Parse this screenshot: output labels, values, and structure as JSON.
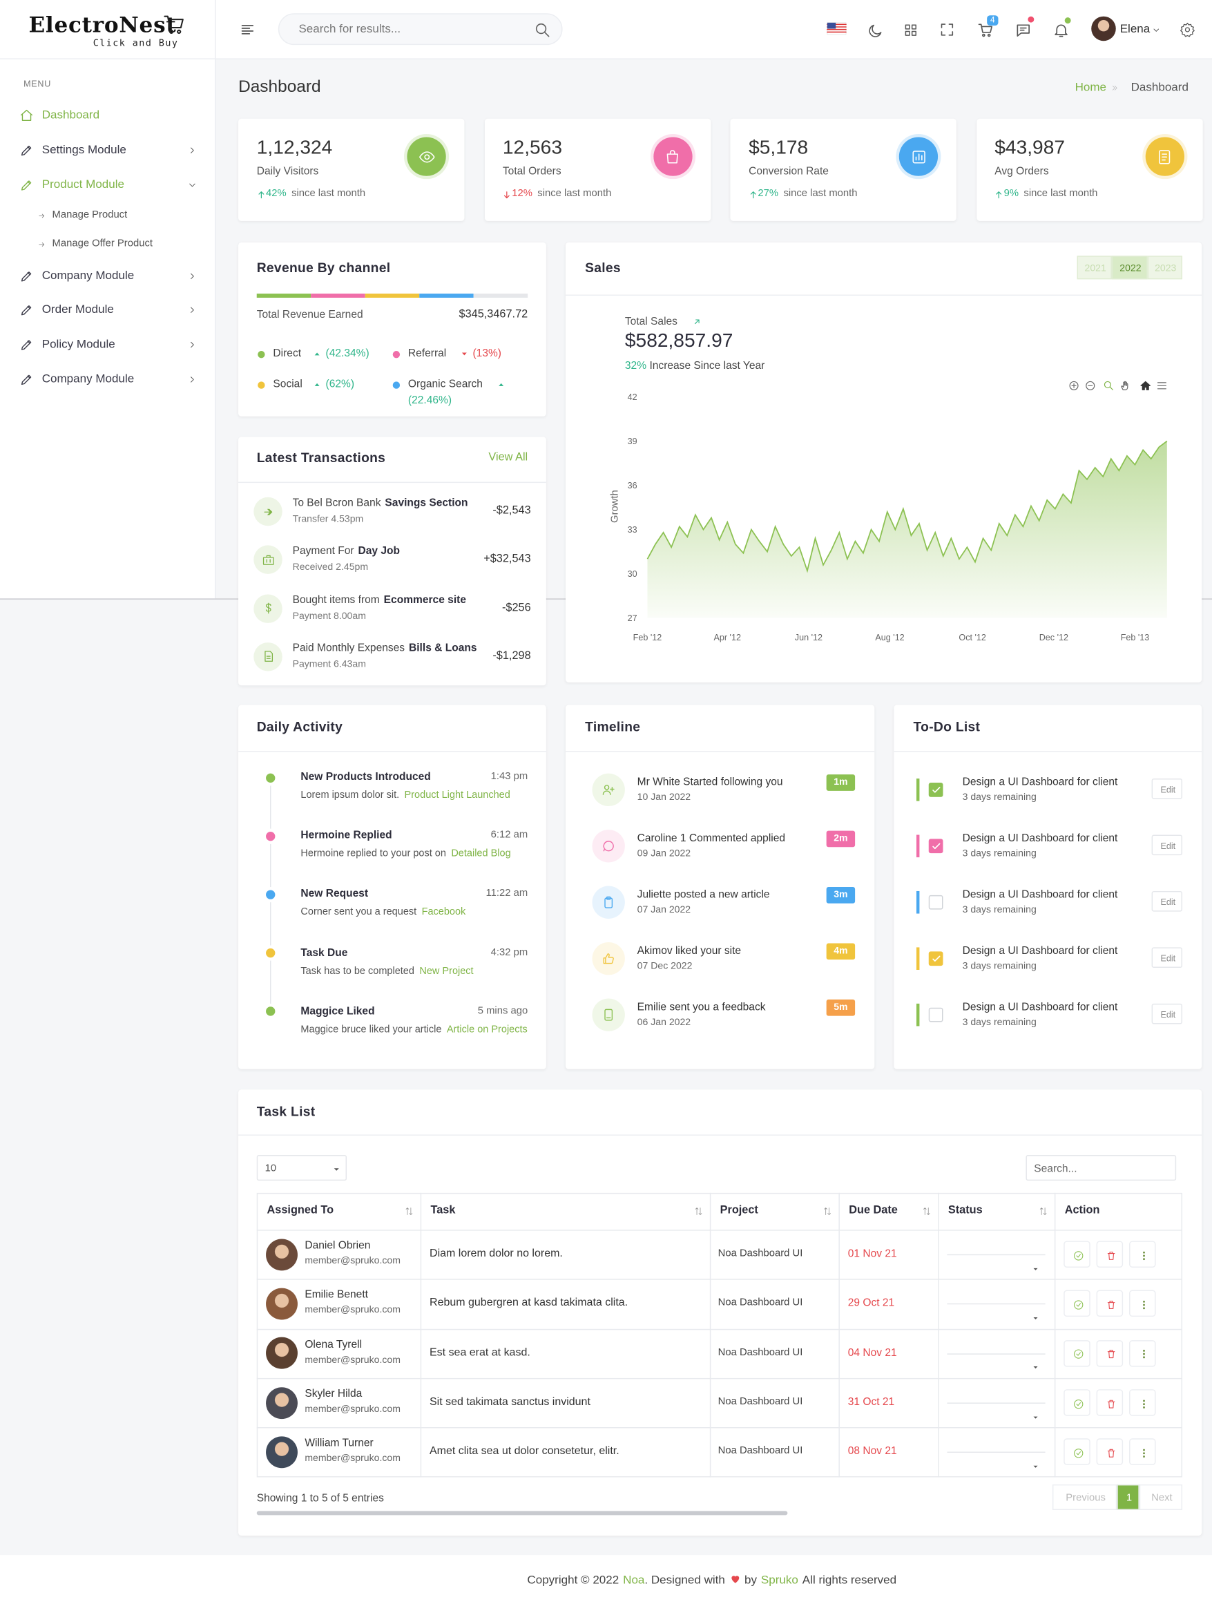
{
  "brand": {
    "name": "ElectroNest",
    "tagline": "Click and Buy"
  },
  "sidebar": {
    "menu_label": "MENU",
    "items": [
      {
        "label": "Dashboard",
        "active": true
      },
      {
        "label": "Settings Module"
      },
      {
        "label": "Product Module",
        "expanded": true,
        "children": [
          "Manage Product",
          "Manage Offer Product"
        ]
      },
      {
        "label": "Company Module"
      },
      {
        "label": "Order Module"
      },
      {
        "label": "Policy Module"
      },
      {
        "label": "Company Module"
      }
    ]
  },
  "header": {
    "search_placeholder": "Search for results...",
    "cart_count": "4",
    "user_name": "Elena"
  },
  "page": {
    "title": "Dashboard",
    "breadcrumb": [
      "Home",
      "Dashboard"
    ]
  },
  "stats": [
    {
      "value": "1,12,324",
      "label": "Daily Visitors",
      "change": "42%",
      "trend": "up",
      "note": "since last month",
      "color": "#8cc152"
    },
    {
      "value": "12,563",
      "label": "Total Orders",
      "change": "12%",
      "trend": "down",
      "note": "since last month",
      "color": "#f06ea9"
    },
    {
      "value": "$5,178",
      "label": "Conversion Rate",
      "change": "27%",
      "trend": "up",
      "note": "since last month",
      "color": "#4aa8f0"
    },
    {
      "value": "$43,987",
      "label": "Avg Orders",
      "change": "9%",
      "trend": "up",
      "note": "since last month",
      "color": "#f0c43c"
    }
  ],
  "revenue": {
    "title": "Revenue By channel",
    "total_label": "Total Revenue Earned",
    "total": "$345,3467.72",
    "channels": [
      {
        "name": "Direct",
        "change": "(42.34%)",
        "trend": "up",
        "color": "#8cc152"
      },
      {
        "name": "Referral",
        "change": "(13%)",
        "trend": "down",
        "color": "#f06ea9"
      },
      {
        "name": "Social",
        "change": "(62%)",
        "trend": "up",
        "color": "#f0c43c"
      },
      {
        "name": "Organic Search",
        "change": "(22.46%)",
        "trend": "up",
        "color": "#4aa8f0"
      }
    ]
  },
  "transactions": {
    "title": "Latest Transactions",
    "view_all": "View All",
    "items": [
      {
        "text": "To Bel Bcron Bank",
        "bold": "Savings Section",
        "sub": "Transfer 4.53pm",
        "amount": "-$2,543"
      },
      {
        "text": "Payment For",
        "bold": "Day Job",
        "sub": "Received 2.45pm",
        "amount": "+$32,543"
      },
      {
        "text": "Bought items from",
        "bold": "Ecommerce site",
        "sub": "Payment 8.00am",
        "amount": "-$256"
      },
      {
        "text": "Paid Monthly Expenses",
        "bold": "Bills & Loans",
        "sub": "Payment 6.43am",
        "amount": "-$1,298"
      }
    ]
  },
  "sales": {
    "title": "Sales",
    "years": [
      {
        "label": "2021"
      },
      {
        "label": "2022",
        "active": true
      },
      {
        "label": "2023"
      }
    ],
    "total_label": "Total Sales",
    "total": "$582,857.97",
    "growth": "32%",
    "growth_text": "Increase Since last Year",
    "chart": {
      "type": "area",
      "y_label": "Growth",
      "color": "#8cc152",
      "x": [
        0,
        6,
        12,
        18,
        24,
        30,
        36,
        42,
        48,
        54,
        60,
        66,
        72,
        78,
        84,
        90,
        96,
        102,
        108,
        114,
        120,
        126,
        132,
        138,
        144,
        150,
        156,
        162,
        168,
        174,
        180,
        186,
        192,
        198,
        204,
        210,
        216,
        222,
        228,
        234,
        240,
        246,
        252,
        258,
        264,
        270,
        276,
        282,
        288,
        294,
        300,
        306,
        312,
        318,
        324,
        330,
        336,
        342,
        348,
        354,
        360,
        366,
        372,
        378,
        384,
        390
      ],
      "values": [
        31.0,
        32.0,
        32.8,
        31.8,
        33.2,
        32.5,
        34.0,
        33.0,
        33.8,
        32.3,
        33.5,
        32.0,
        31.4,
        33.0,
        32.2,
        31.5,
        33.2,
        32.0,
        31.2,
        31.8,
        30.2,
        32.4,
        30.6,
        31.6,
        32.8,
        31.0,
        32.2,
        31.4,
        33.0,
        32.2,
        34.2,
        33.0,
        34.4,
        32.6,
        33.4,
        31.6,
        32.8,
        31.2,
        32.4,
        31.0,
        31.8,
        30.8,
        32.4,
        31.6,
        33.4,
        32.6,
        34.0,
        33.2,
        34.6,
        33.6,
        35.0,
        34.4,
        35.4,
        34.8,
        37.0,
        36.4,
        37.2,
        36.6,
        37.8,
        37.0,
        38.0,
        37.4,
        38.4,
        37.8,
        38.6,
        39.0
      ],
      "xlim": [
        0,
        390
      ],
      "ylim": [
        27,
        42
      ],
      "yticks": [
        27,
        30,
        33,
        36,
        39,
        42
      ],
      "xticks": [
        {
          "value": 0,
          "label": "Feb '12"
        },
        {
          "value": 60,
          "label": "Apr '12"
        },
        {
          "value": 121,
          "label": "Jun '12"
        },
        {
          "value": 182,
          "label": "Aug '12"
        },
        {
          "value": 244,
          "label": "Oct '12"
        },
        {
          "value": 305,
          "label": "Dec '12"
        },
        {
          "value": 366,
          "label": "Feb '13"
        }
      ]
    }
  },
  "daily_activity": {
    "title": "Daily Activity",
    "items": [
      {
        "title": "New Products Introduced",
        "time": "1:43 pm",
        "text": "Lorem ipsum dolor sit.",
        "link": "Product Light Launched",
        "color": "#8cc152"
      },
      {
        "title": "Hermoine Replied",
        "time": "6:12 am",
        "text": "Hermoine replied to your post on",
        "link": "Detailed Blog",
        "color": "#f06ea9"
      },
      {
        "title": "New Request",
        "time": "11:22 am",
        "text": "Corner sent you a request",
        "link": "Facebook",
        "color": "#4aa8f0"
      },
      {
        "title": "Task Due",
        "time": "4:32 pm",
        "text": "Task has to be completed",
        "link": "New Project",
        "color": "#f0c43c"
      },
      {
        "title": "Maggice Liked",
        "time": "5 mins ago",
        "text": "Maggice bruce liked your article",
        "link": "Article on Projects",
        "color": "#8cc152"
      }
    ]
  },
  "timeline": {
    "title": "Timeline",
    "items": [
      {
        "text": "Mr White Started following you",
        "date": "10 Jan 2022",
        "badge": "1m",
        "color": "#8cc152",
        "badge_color": "#8cc152"
      },
      {
        "text": "Caroline 1 Commented applied",
        "date": "09 Jan 2022",
        "badge": "2m",
        "color": "#f06ea9",
        "badge_color": "#f06ea9"
      },
      {
        "text": "Juliette posted a new article",
        "date": "07 Jan 2022",
        "badge": "3m",
        "color": "#4aa8f0",
        "badge_color": "#4aa8f0"
      },
      {
        "text": "Akimov liked your site",
        "date": "07 Dec 2022",
        "badge": "4m",
        "color": "#f0c43c",
        "badge_color": "#f0c43c"
      },
      {
        "text": "Emilie sent you a feedback",
        "date": "06 Jan 2022",
        "badge": "5m",
        "color": "#8cc152",
        "badge_color": "#f5a04a"
      }
    ]
  },
  "todo": {
    "title": "To-Do List",
    "items": [
      {
        "text": "Design a UI Dashboard for client",
        "sub": "3 days remaining",
        "action": "Edit",
        "checked": true,
        "color": "#8cc152"
      },
      {
        "text": "Design a UI Dashboard for client",
        "sub": "3 days remaining",
        "action": "Edit",
        "checked": true,
        "color": "#f06ea9"
      },
      {
        "text": "Design a UI Dashboard for client",
        "sub": "3 days remaining",
        "action": "Edit",
        "checked": false,
        "color": "#4aa8f0"
      },
      {
        "text": "Design a UI Dashboard for client",
        "sub": "3 days remaining",
        "action": "Edit",
        "checked": true,
        "color": "#f0c43c"
      },
      {
        "text": "Design a UI Dashboard for client",
        "sub": "3 days remaining",
        "action": "Edit",
        "checked": false,
        "color": "#8cc152"
      }
    ]
  },
  "task_list": {
    "title": "Task List",
    "page_size": "10",
    "search_placeholder": "Search...",
    "columns": [
      "Assigned To",
      "Task",
      "Project",
      "Due Date",
      "Status",
      "Action"
    ],
    "rows": [
      {
        "name": "Daniel Obrien",
        "email": "member@spruko.com",
        "task": "Diam lorem dolor no lorem.",
        "project": "Noa Dashboard UI",
        "due": "01 Nov 21"
      },
      {
        "name": "Emilie Benett",
        "email": "member@spruko.com",
        "task": "Rebum gubergren at kasd takimata clita.",
        "project": "Noa Dashboard UI",
        "due": "29 Oct 21"
      },
      {
        "name": "Olena Tyrell",
        "email": "member@spruko.com",
        "task": "Est sea erat at kasd.",
        "project": "Noa Dashboard UI",
        "due": "04 Nov 21"
      },
      {
        "name": "Skyler Hilda",
        "email": "member@spruko.com",
        "task": "Sit sed takimata sanctus invidunt",
        "project": "Noa Dashboard UI",
        "due": "31 Oct 21"
      },
      {
        "name": "William Turner",
        "email": "member@spruko.com",
        "task": "Amet clita sea ut dolor consetetur, elitr.",
        "project": "Noa Dashboard UI",
        "due": "08 Nov 21"
      }
    ],
    "summary": "Showing 1 to 5 of 5 entries",
    "pagination": [
      "Previous",
      "1",
      "Next"
    ]
  },
  "footer": {
    "copyright": "Copyright © 2022",
    "brand": "Noa",
    "designed": ". Designed with",
    "by": "by",
    "author": "Spruko",
    "rights": "All rights reserved"
  }
}
